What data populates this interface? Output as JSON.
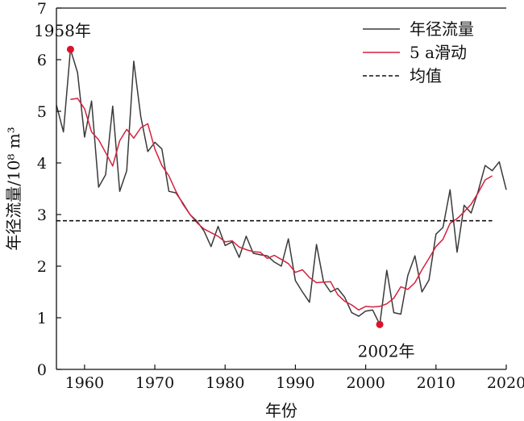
{
  "chart_data": {
    "type": "line",
    "title": "",
    "xlabel": "年份",
    "ylabel": "年径流量/10⁸ m³",
    "xlim": [
      1956,
      2020
    ],
    "ylim": [
      0,
      7
    ],
    "xticks": [
      1960,
      1970,
      1980,
      1990,
      2000,
      2010,
      2020
    ],
    "yticks": [
      0,
      1,
      2,
      3,
      4,
      5,
      6,
      7
    ],
    "grid": false,
    "legend_position": "top-right",
    "series": [
      {
        "name": "年径流量",
        "color": "#3a3a3a",
        "style": "solid",
        "x": [
          1956,
          1957,
          1958,
          1959,
          1960,
          1961,
          1962,
          1963,
          1964,
          1965,
          1966,
          1967,
          1968,
          1969,
          1970,
          1971,
          1972,
          1973,
          1974,
          1975,
          1976,
          1977,
          1978,
          1979,
          1980,
          1981,
          1982,
          1983,
          1984,
          1985,
          1986,
          1987,
          1988,
          1989,
          1990,
          1991,
          1992,
          1993,
          1994,
          1995,
          1996,
          1997,
          1998,
          1999,
          2000,
          2001,
          2002,
          2003,
          2004,
          2005,
          2006,
          2007,
          2008,
          2009,
          2010,
          2011,
          2012,
          2013,
          2014,
          2015,
          2016,
          2017,
          2018,
          2019,
          2020
        ],
        "values": [
          5.12,
          4.6,
          6.2,
          5.75,
          4.5,
          5.2,
          3.53,
          3.77,
          5.1,
          3.45,
          3.85,
          5.97,
          4.9,
          4.22,
          4.4,
          4.27,
          3.45,
          3.42,
          3.22,
          3.0,
          2.87,
          2.68,
          2.38,
          2.77,
          2.4,
          2.47,
          2.17,
          2.58,
          2.25,
          2.22,
          2.2,
          2.08,
          2.0,
          2.53,
          1.72,
          1.5,
          1.3,
          2.42,
          1.7,
          1.5,
          1.57,
          1.4,
          1.1,
          1.03,
          1.13,
          1.15,
          0.87,
          1.92,
          1.1,
          1.07,
          1.82,
          2.2,
          1.5,
          1.73,
          2.62,
          2.75,
          3.48,
          2.27,
          3.18,
          3.03,
          3.45,
          3.95,
          3.85,
          4.02,
          3.48
        ]
      },
      {
        "name": "5 a滑动",
        "color": "#d6203c",
        "style": "solid",
        "x": [
          1958,
          1959,
          1960,
          1961,
          1962,
          1963,
          1964,
          1965,
          1966,
          1967,
          1968,
          1969,
          1970,
          1971,
          1972,
          1973,
          1974,
          1975,
          1976,
          1977,
          1978,
          1979,
          1980,
          1981,
          1982,
          1983,
          1984,
          1985,
          1986,
          1987,
          1988,
          1989,
          1990,
          1991,
          1992,
          1993,
          1994,
          1995,
          1996,
          1997,
          1998,
          1999,
          2000,
          2001,
          2002,
          2003,
          2004,
          2005,
          2006,
          2007,
          2008,
          2009,
          2010,
          2011,
          2012,
          2013,
          2014,
          2015,
          2016,
          2017,
          2018
        ],
        "values": [
          5.23,
          5.25,
          5.05,
          4.6,
          4.45,
          4.2,
          3.94,
          4.43,
          4.65,
          4.48,
          4.68,
          4.76,
          4.27,
          3.95,
          3.75,
          3.45,
          3.2,
          3.0,
          2.84,
          2.72,
          2.65,
          2.58,
          2.47,
          2.49,
          2.37,
          2.32,
          2.28,
          2.27,
          2.15,
          2.21,
          2.13,
          2.05,
          1.88,
          1.93,
          1.78,
          1.68,
          1.69,
          1.7,
          1.45,
          1.32,
          1.25,
          1.15,
          1.22,
          1.21,
          1.22,
          1.27,
          1.38,
          1.6,
          1.55,
          1.68,
          1.93,
          2.15,
          2.38,
          2.52,
          2.83,
          2.92,
          3.05,
          3.2,
          3.42,
          3.67,
          3.75
        ]
      },
      {
        "name": "均值",
        "color": "#111111",
        "style": "dashed",
        "x": [
          1956,
          2018
        ],
        "values": [
          2.88,
          2.88
        ]
      }
    ],
    "annotations": [
      {
        "text": "1958年",
        "x": 1958,
        "y": 6.2,
        "color": "#e0102a"
      },
      {
        "text": "2002年",
        "x": 2002,
        "y": 0.87,
        "color": "#e0102a"
      }
    ]
  }
}
